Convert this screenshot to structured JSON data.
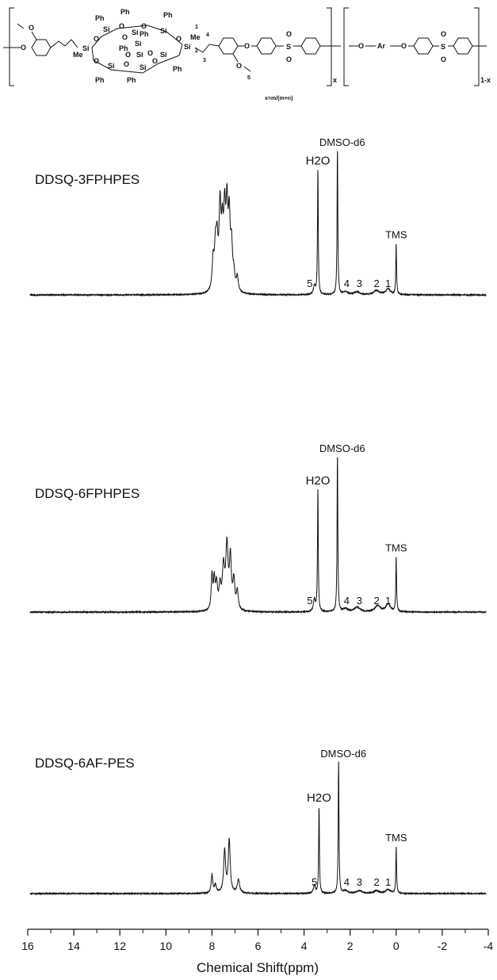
{
  "structure": {
    "repeat_x_label": "x",
    "repeat_1mx_label": "1-x",
    "x_definition": "x=m/(m+n)",
    "atoms": {
      "ph": "Ph",
      "si": "Si",
      "o": "O",
      "me": "Me",
      "ar": "Ar",
      "s": "S",
      "n1": "1",
      "n2": "2",
      "n3": "3",
      "n4": "4",
      "n5": "5"
    }
  },
  "chart_data": {
    "type": "line",
    "subtype": "stacked 1H NMR spectra",
    "xlabel": "Chemical Shift(ppm)",
    "ylabel": "",
    "xlim": [
      16,
      -4
    ],
    "x_reversed": true,
    "x_ticks": [
      16,
      14,
      12,
      10,
      8,
      6,
      4,
      2,
      0,
      -2,
      -4
    ],
    "x_tick_labels": [
      "16",
      "14",
      "12",
      "10",
      "8",
      "6",
      "4",
      "2",
      "0",
      "-2",
      "-4"
    ],
    "grid": false,
    "legend": "none",
    "line_color": "#111111",
    "series": [
      {
        "name": "DDSQ-3FPHPES",
        "peaks": [
          {
            "x": 7.95,
            "h": 0.2,
            "w": 0.05
          },
          {
            "x": 7.85,
            "h": 0.26,
            "w": 0.05
          },
          {
            "x": 7.78,
            "h": 0.3,
            "w": 0.05
          },
          {
            "x": 7.65,
            "h": 0.54,
            "w": 0.05
          },
          {
            "x": 7.55,
            "h": 0.36,
            "w": 0.05
          },
          {
            "x": 7.45,
            "h": 0.48,
            "w": 0.05
          },
          {
            "x": 7.35,
            "h": 0.52,
            "w": 0.05
          },
          {
            "x": 7.25,
            "h": 0.46,
            "w": 0.05
          },
          {
            "x": 7.15,
            "h": 0.28,
            "w": 0.05
          },
          {
            "x": 7.05,
            "h": 0.1,
            "w": 0.05
          },
          {
            "x": 6.9,
            "h": 0.1,
            "w": 0.05
          },
          {
            "x": 3.55,
            "h": 0.06,
            "w": 0.05
          },
          {
            "x": 3.4,
            "h": 0.86,
            "w": 0.02
          },
          {
            "x": 2.55,
            "h": 1.0,
            "w": 0.02
          },
          {
            "x": 2.2,
            "h": 0.02,
            "w": 0.12
          },
          {
            "x": 1.7,
            "h": 0.02,
            "w": 0.14
          },
          {
            "x": 0.85,
            "h": 0.03,
            "w": 0.14
          },
          {
            "x": 0.35,
            "h": 0.04,
            "w": 0.12
          },
          {
            "x": 0.0,
            "h": 0.35,
            "w": 0.02
          }
        ],
        "labels": [
          {
            "text": "H2O",
            "x": 3.4
          },
          {
            "text": "DMSO-d6",
            "x": 2.55
          },
          {
            "text": "TMS",
            "x": 0.0
          },
          {
            "text": "5",
            "x": 3.75
          },
          {
            "text": "4",
            "x": 2.15
          },
          {
            "text": "3",
            "x": 1.6
          },
          {
            "text": "2",
            "x": 0.85
          },
          {
            "text": "1",
            "x": 0.35
          }
        ]
      },
      {
        "name": "DDSQ-6FPHPES",
        "peaks": [
          {
            "x": 8.0,
            "h": 0.22,
            "w": 0.04
          },
          {
            "x": 7.9,
            "h": 0.18,
            "w": 0.04
          },
          {
            "x": 7.8,
            "h": 0.16,
            "w": 0.05
          },
          {
            "x": 7.65,
            "h": 0.14,
            "w": 0.05
          },
          {
            "x": 7.5,
            "h": 0.26,
            "w": 0.06
          },
          {
            "x": 7.35,
            "h": 0.4,
            "w": 0.06
          },
          {
            "x": 7.2,
            "h": 0.32,
            "w": 0.05
          },
          {
            "x": 7.05,
            "h": 0.18,
            "w": 0.05
          },
          {
            "x": 6.9,
            "h": 0.12,
            "w": 0.05
          },
          {
            "x": 3.55,
            "h": 0.08,
            "w": 0.05
          },
          {
            "x": 3.4,
            "h": 0.78,
            "w": 0.02
          },
          {
            "x": 2.55,
            "h": 1.0,
            "w": 0.02
          },
          {
            "x": 2.2,
            "h": 0.02,
            "w": 0.12
          },
          {
            "x": 1.7,
            "h": 0.03,
            "w": 0.14
          },
          {
            "x": 0.8,
            "h": 0.04,
            "w": 0.14
          },
          {
            "x": 0.35,
            "h": 0.05,
            "w": 0.12
          },
          {
            "x": 0.0,
            "h": 0.35,
            "w": 0.02
          }
        ],
        "labels": [
          {
            "text": "H2O",
            "x": 3.4
          },
          {
            "text": "DMSO-d6",
            "x": 2.55
          },
          {
            "text": "TMS",
            "x": 0.0
          },
          {
            "text": "5",
            "x": 3.75
          },
          {
            "text": "4",
            "x": 2.15
          },
          {
            "text": "3",
            "x": 1.6
          },
          {
            "text": "2",
            "x": 0.85
          },
          {
            "text": "1",
            "x": 0.35
          }
        ]
      },
      {
        "name": "DDSQ-6AF-PES",
        "peaks": [
          {
            "x": 8.0,
            "h": 0.14,
            "w": 0.04
          },
          {
            "x": 7.85,
            "h": 0.06,
            "w": 0.05
          },
          {
            "x": 7.45,
            "h": 0.32,
            "w": 0.05
          },
          {
            "x": 7.25,
            "h": 0.4,
            "w": 0.05
          },
          {
            "x": 6.85,
            "h": 0.1,
            "w": 0.06
          },
          {
            "x": 3.55,
            "h": 0.06,
            "w": 0.05
          },
          {
            "x": 3.35,
            "h": 0.65,
            "w": 0.02
          },
          {
            "x": 2.5,
            "h": 1.0,
            "w": 0.02
          },
          {
            "x": 2.2,
            "h": 0.02,
            "w": 0.12
          },
          {
            "x": 1.6,
            "h": 0.02,
            "w": 0.14
          },
          {
            "x": 0.85,
            "h": 0.02,
            "w": 0.14
          },
          {
            "x": 0.35,
            "h": 0.03,
            "w": 0.12
          },
          {
            "x": 0.0,
            "h": 0.35,
            "w": 0.02
          }
        ],
        "labels": [
          {
            "text": "H2O",
            "x": 3.35
          },
          {
            "text": "DMSO-d6",
            "x": 2.5
          },
          {
            "text": "TMS",
            "x": 0.0
          },
          {
            "text": "5",
            "x": 3.55
          },
          {
            "text": "4",
            "x": 2.15
          },
          {
            "text": "3",
            "x": 1.6
          },
          {
            "text": "2",
            "x": 0.85
          },
          {
            "text": "1",
            "x": 0.35
          }
        ]
      }
    ]
  }
}
